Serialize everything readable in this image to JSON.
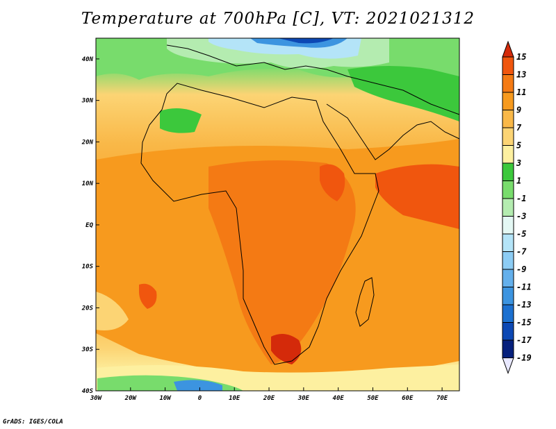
{
  "title": "Temperature at 700hPa [C], VT: 2021021312",
  "footer": "GrADS: IGES/COLA",
  "map": {
    "lon_range": [
      -30,
      75
    ],
    "lat_range": [
      -40,
      45
    ],
    "lon_ticks": [
      "30W",
      "20W",
      "10W",
      "0",
      "10E",
      "20E",
      "30E",
      "40E",
      "50E",
      "60E",
      "70E"
    ],
    "lat_ticks": [
      "40N",
      "30N",
      "20N",
      "10N",
      "EQ",
      "10S",
      "20S",
      "30S",
      "40S"
    ]
  },
  "colorbar": {
    "levels": [
      "15",
      "13",
      "11",
      "9",
      "7",
      "5",
      "3",
      "1",
      "-1",
      "-3",
      "-5",
      "-7",
      "-9",
      "-11",
      "-13",
      "-15",
      "-17",
      "-19"
    ],
    "colors": [
      "#d42a0a",
      "#f0560e",
      "#f47a14",
      "#f79a1e",
      "#f9b848",
      "#fcd474",
      "#fdf0a0",
      "#3cc83c",
      "#78dc6c",
      "#b4ecb0",
      "#e4f8f4",
      "#b4e4f8",
      "#8cccf4",
      "#64b0ec",
      "#3c94e0",
      "#1c70d0",
      "#0c48b4",
      "#06207c",
      "#e8e8ff"
    ]
  }
}
